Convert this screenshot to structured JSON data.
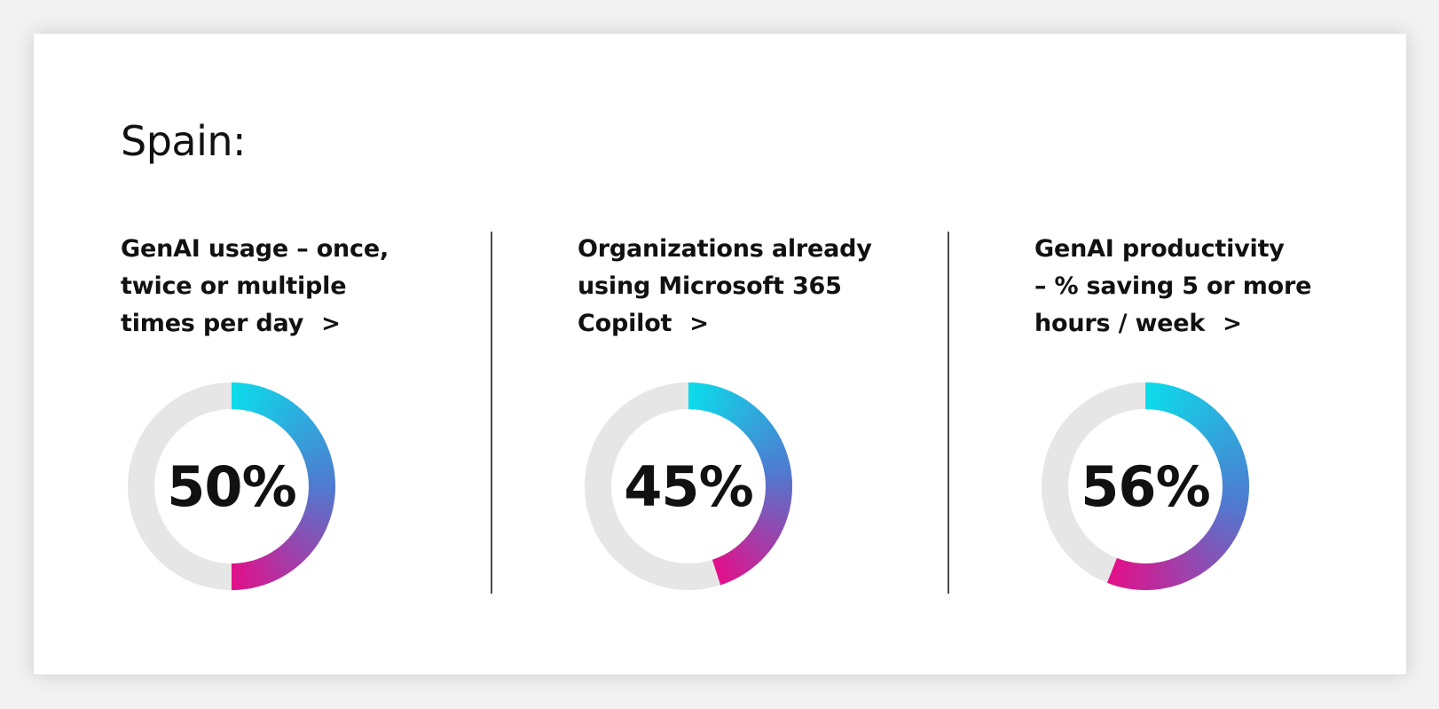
{
  "title": "Spain:",
  "stats": [
    {
      "label": "GenAI usage – once,\ntwice or multiple\ntimes per day",
      "chevron": ">",
      "value_text": "50%",
      "value": 50
    },
    {
      "label": "Organizations already\nusing Microsoft 365\nCopilot",
      "chevron": ">",
      "value_text": "45%",
      "value": 45
    },
    {
      "label": "GenAI productivity\n–  % saving 5 or more\nhours / week",
      "chevron": ">",
      "value_text": "56%",
      "value": 56
    }
  ],
  "colors": {
    "track": "#e6e6e6",
    "gradient_start": "#0ddbea",
    "gradient_mid": "#4f7ad0",
    "gradient_end": "#e0118b",
    "divider": "#4a4a4a"
  }
}
